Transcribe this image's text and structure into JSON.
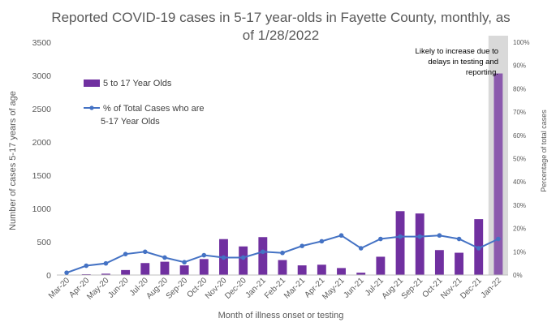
{
  "chart_data": {
    "type": "bar",
    "title_line1": "Reported COVID-19 cases in 5-17 year-olds in Fayette County, monthly, as",
    "title_line2": "of 1/28/2022",
    "xlabel": "Month of illness onset or testing",
    "ylabel_left": "Number of cases 5-17 years of age",
    "ylabel_right": "Percentage of total cases",
    "categories": [
      "Mar-20",
      "Apr-20",
      "May-20",
      "Jun-20",
      "Jul-20",
      "Aug-20",
      "Sep-20",
      "Oct-20",
      "Nov-20",
      "Dec-20",
      "Jan-21",
      "Feb-21",
      "Mar-21",
      "Apr-21",
      "May-21",
      "Jun-21",
      "Jul-21",
      "Aug-21",
      "Sep-21",
      "Oct-21",
      "Nov-21",
      "Dec-21",
      "Jan-22"
    ],
    "ylim_left": [
      0,
      3500
    ],
    "yticks_left": [
      "0",
      "500",
      "1000",
      "1500",
      "2000",
      "2500",
      "3000",
      "3500"
    ],
    "ylim_right": [
      0,
      100
    ],
    "yticks_right": [
      "0%",
      "10%",
      "20%",
      "30%",
      "40%",
      "50%",
      "60%",
      "70%",
      "80%",
      "90%",
      "100%"
    ],
    "series": [
      {
        "name": "5 to 17 Year Olds",
        "kind": "bar",
        "color": "#7030a0",
        "values": [
          2,
          12,
          20,
          75,
          180,
          200,
          145,
          240,
          540,
          430,
          570,
          225,
          145,
          155,
          105,
          35,
          275,
          960,
          925,
          375,
          335,
          840,
          3030
        ]
      },
      {
        "name_line1": "% of Total Cases who are",
        "name_line2": "5-17 Year Olds",
        "kind": "line",
        "color": "#4472c4",
        "values": [
          1,
          4,
          5,
          9,
          10,
          7.5,
          5.5,
          8.5,
          7.5,
          7.5,
          10,
          9.5,
          12.5,
          14.5,
          17,
          11.5,
          15.5,
          16.5,
          16.5,
          17,
          15.5,
          11.5,
          15.5
        ]
      }
    ],
    "annotation": {
      "lines": [
        "Likely to increase due to",
        "delays in testing and",
        "reporting."
      ],
      "highlight_category": "Jan-22",
      "highlight_color": "#d9d9d9",
      "highlight_bar_color": "#8b5aad"
    },
    "grid": false,
    "legend": "upper-left"
  }
}
